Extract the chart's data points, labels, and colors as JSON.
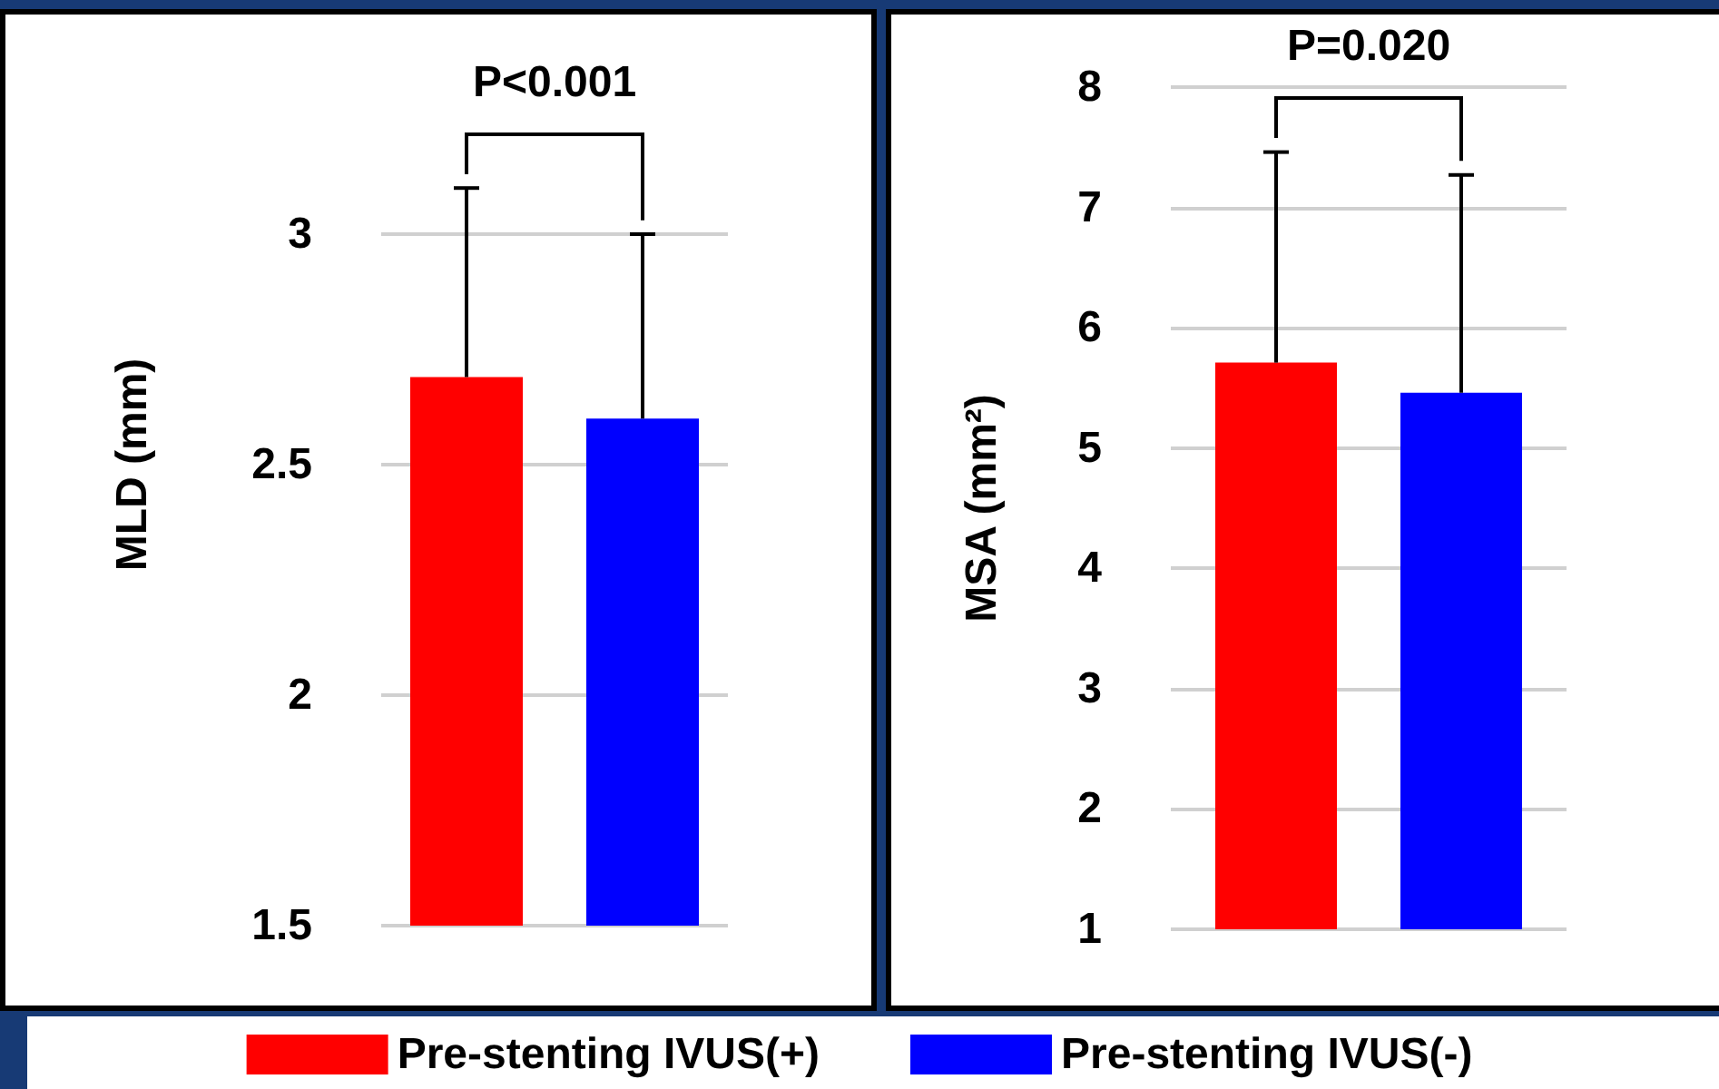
{
  "chart_data": [
    {
      "type": "bar",
      "categories": [
        null
      ],
      "ylabel": "MLD (mm)",
      "ylim": [
        1.5,
        3.5
      ],
      "yticks": [
        1.5,
        2,
        2.5,
        3
      ],
      "grid": "y",
      "legend": "bottom",
      "annotations": [
        "P<0.001"
      ],
      "series": [
        {
          "name": "Pre-stenting IVUS(+)",
          "color": "#ff0000",
          "values": [
            2.69
          ],
          "errors": [
            [
              2.69,
              3.1
            ]
          ]
        },
        {
          "name": "Pre-stenting IVUS(-)",
          "color": "#0000ff",
          "values": [
            2.6
          ],
          "errors": [
            [
              2.6,
              3.0
            ]
          ]
        }
      ]
    },
    {
      "type": "bar",
      "categories": [
        null
      ],
      "ylabel": "MSA (mm²)",
      "ylim": [
        1,
        8
      ],
      "yticks": [
        1,
        2,
        3,
        4,
        5,
        6,
        7,
        8
      ],
      "grid": "y",
      "annotations": [
        "P=0.020"
      ],
      "series": [
        {
          "color": "#ff0000",
          "values": [
            5.71
          ],
          "errors": [
            [
              5.71,
              7.46
            ]
          ]
        },
        {
          "color": "#0000ff",
          "values": [
            5.46
          ],
          "errors": [
            [
              5.46,
              7.27
            ]
          ]
        }
      ]
    }
  ]
}
